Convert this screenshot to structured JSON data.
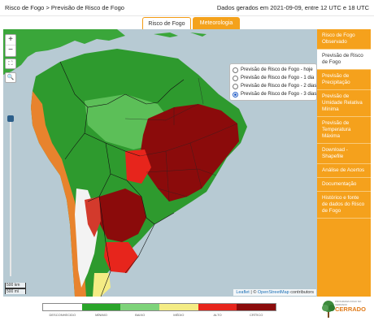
{
  "header": {
    "breadcrumb": "Risco de Fogo > Previsão de Risco de Fogo",
    "date_info": "Dados gerados em 2021-09-09, entre 12 UTC e 18 UTC"
  },
  "tabs": [
    {
      "label": "Risco de Fogo",
      "active": true
    },
    {
      "label": "Meteorologia",
      "active": false
    }
  ],
  "map_controls": {
    "zoom_in": "+",
    "zoom_out": "−",
    "fullscreen_icon": "fullscreen-icon",
    "search_icon": "search-icon",
    "opacity_level": 1.0
  },
  "forecast_options": [
    {
      "label": "Previsão de Risco de Fogo - hoje",
      "selected": false
    },
    {
      "label": "Previsão de Risco de Fogo - 1 dia",
      "selected": false
    },
    {
      "label": "Previsão de Risco de Fogo - 2 dias",
      "selected": false
    },
    {
      "label": "Previsão de Risco de Fogo - 3 dias",
      "selected": true
    }
  ],
  "sidebar": [
    {
      "label": "Risco de Fogo Observado",
      "active": false
    },
    {
      "label": "Previsão de Risco de Fogo",
      "active": true
    },
    {
      "label": "Previsão de Precipitação",
      "active": false
    },
    {
      "label": "Previsão de Umidade Relativa Mínima",
      "active": false
    },
    {
      "label": "Previsão de Temperatura Máxima",
      "active": false
    },
    {
      "label": "Download - Shapefile",
      "active": false
    },
    {
      "label": "Análise de Acertos",
      "active": false
    },
    {
      "label": "Documentação",
      "active": false
    },
    {
      "label": "Histórico e fonte de dados do Risco de Fogo",
      "active": false
    }
  ],
  "scale": {
    "km": "500 km",
    "mi": "500 mi"
  },
  "attribution": {
    "leaflet": "Leaflet",
    "sep": " | © ",
    "osm": "OpenStreetMap",
    "suffix": " contributors"
  },
  "legend": [
    {
      "label": "DESCONHECIDO",
      "color": "#ffffff"
    },
    {
      "label": "MÍNIMO",
      "color": "#2aa52a"
    },
    {
      "label": "BAIXO",
      "color": "#7ed37a"
    },
    {
      "label": "MÉDIO",
      "color": "#f4ec84"
    },
    {
      "label": "ALTO",
      "color": "#e7251c"
    },
    {
      "label": "CRÍTICO",
      "color": "#8b0b0b"
    }
  ],
  "logo": {
    "name": "CERRADO",
    "tagline": "PROGRAMA FOGO NO CERRADO"
  },
  "colors": {
    "accent": "#f5a11c",
    "ocean": "#b7cad3"
  }
}
